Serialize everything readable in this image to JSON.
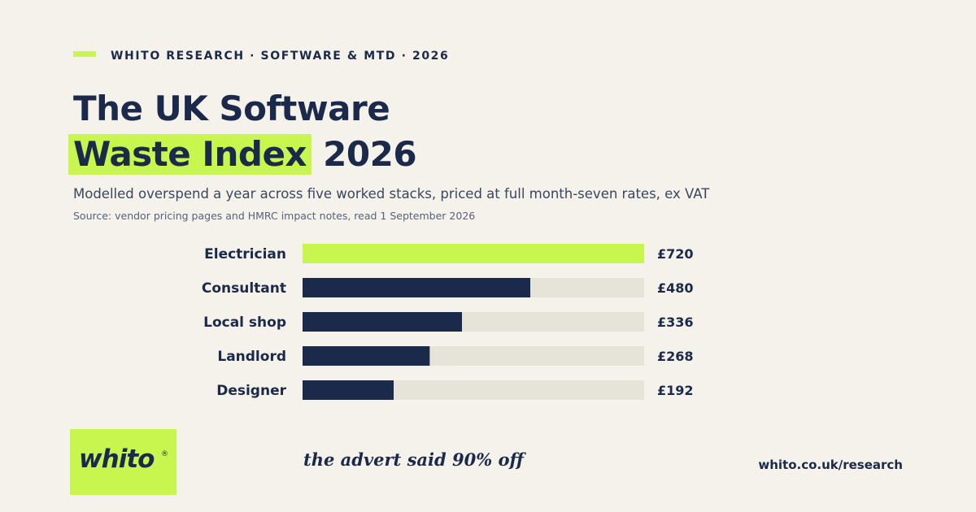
{
  "header": {
    "eyebrow": "WHITO RESEARCH · SOFTWARE & MTD · 2026",
    "title_line1": "The UK Software",
    "title_highlight": "Waste Index",
    "title_year": "2026",
    "subtitle": "Modelled overspend a year across five worked stacks, priced at full month-seven rates, ex VAT",
    "source": "Source: vendor pricing pages and HMRC impact notes, read 1 September 2026"
  },
  "chart_data": {
    "type": "bar",
    "orientation": "horizontal",
    "categories": [
      "Electrician",
      "Consultant",
      "Local shop",
      "Landlord",
      "Designer"
    ],
    "values": [
      720,
      480,
      336,
      268,
      192
    ],
    "value_labels": [
      "£720",
      "£480",
      "£336",
      "£268",
      "£192"
    ],
    "xlim": [
      0,
      720
    ],
    "grid": false,
    "colors": {
      "highlight": "#c8f54e",
      "bar": "#1b2a4a",
      "track": "#e6e3d8"
    }
  },
  "footer": {
    "logo_text": "whito",
    "logo_mark": "®",
    "tagline": "the advert said 90% off",
    "url": "whito.co.uk/research"
  }
}
